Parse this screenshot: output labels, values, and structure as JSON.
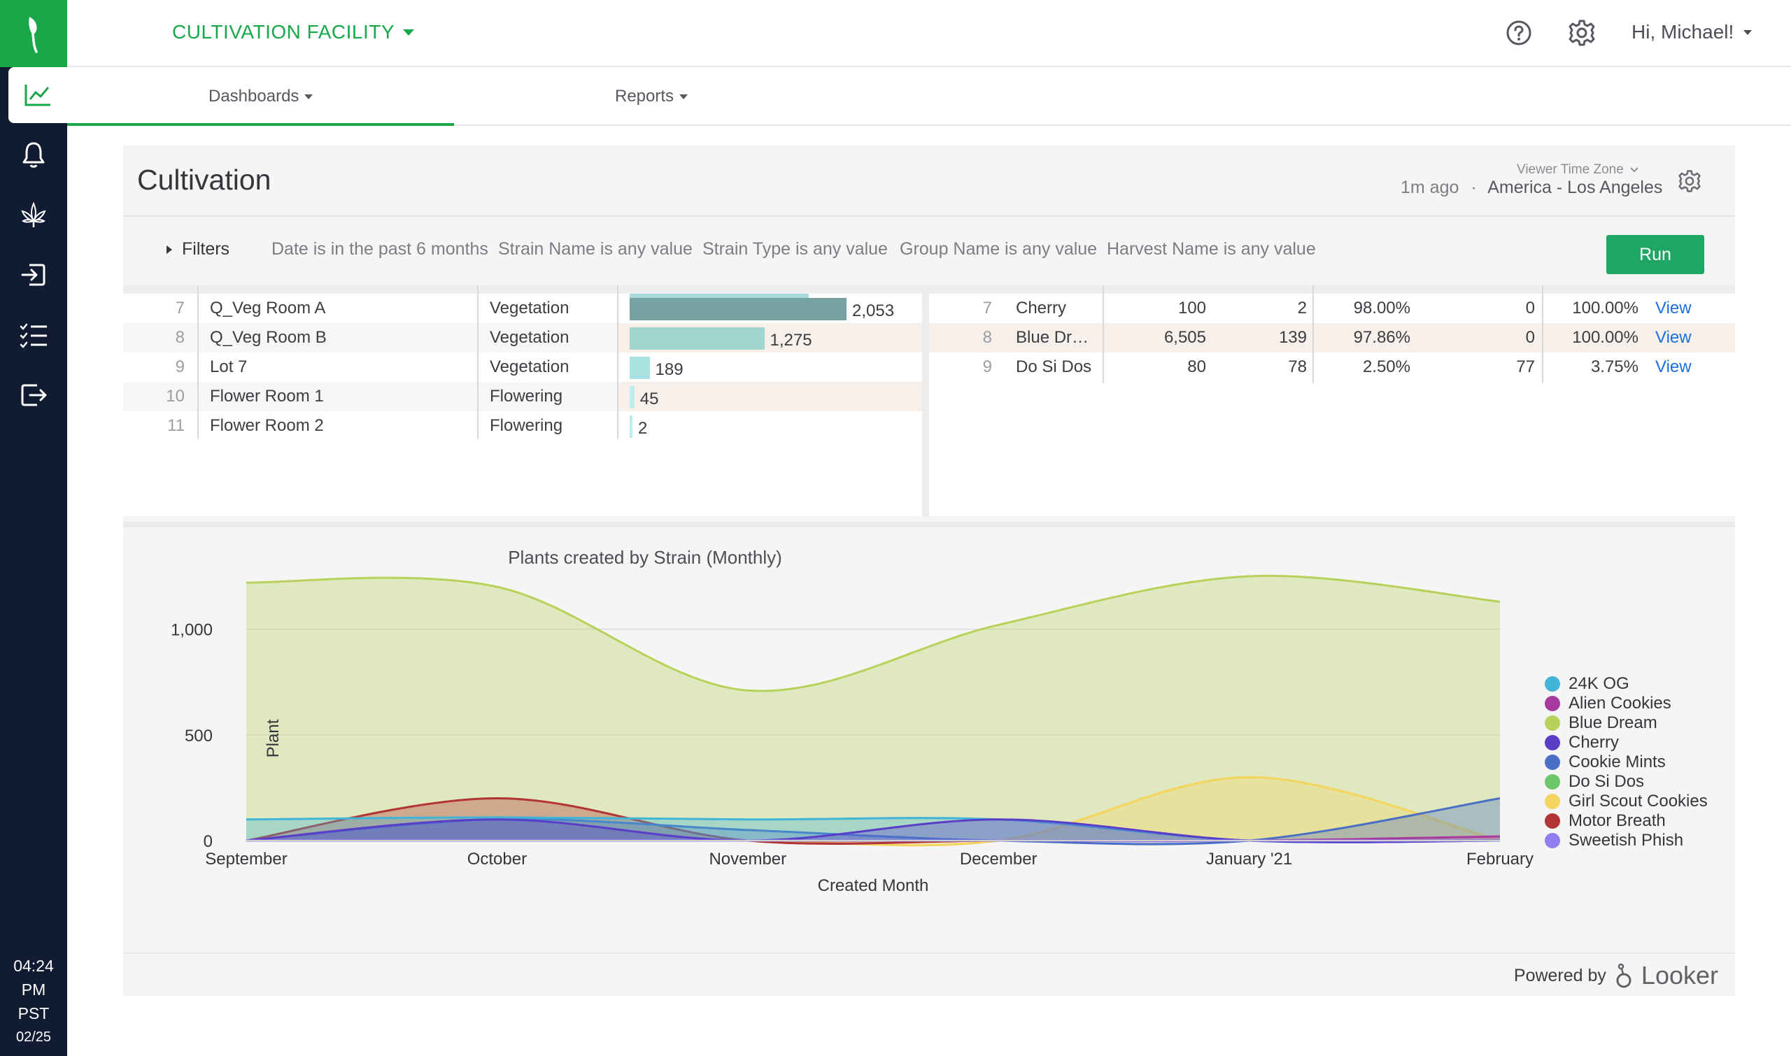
{
  "app": {
    "facility": "CULTIVATION FACILITY",
    "greeting": "Hi, Michael!"
  },
  "sidebar": {
    "clock": {
      "time": "04:24",
      "ampm": "PM",
      "tz": "PST",
      "date": "02/25"
    }
  },
  "nav": {
    "tabs": [
      {
        "label": "Dashboards"
      },
      {
        "label": "Reports"
      }
    ]
  },
  "dashboard": {
    "title": "Cultivation",
    "updated": "1m ago",
    "separator": "·",
    "tz_label": "Viewer Time Zone",
    "tz_value": "America - Los Angeles",
    "filters_label": "Filters",
    "filters": [
      "Date is in the past 6 months",
      "Strain Name is any value",
      "Strain Type is any value",
      "Group Name is any value",
      "Harvest Name is any value"
    ],
    "run_label": "Run"
  },
  "left_table": {
    "rows": [
      {
        "n": "7",
        "name": "Q_Veg Room A",
        "phase": "Vegetation",
        "value": 2053,
        "label": "2,053"
      },
      {
        "n": "8",
        "name": "Q_Veg Room B",
        "phase": "Vegetation",
        "value": 1275,
        "label": "1,275"
      },
      {
        "n": "9",
        "name": "Lot 7",
        "phase": "Vegetation",
        "value": 189,
        "label": "189"
      },
      {
        "n": "10",
        "name": "Flower Room 1",
        "phase": "Flowering",
        "value": 45,
        "label": "45"
      },
      {
        "n": "11",
        "name": "Flower Room 2",
        "phase": "Flowering",
        "value": 2,
        "label": "2"
      }
    ]
  },
  "right_table": {
    "rows": [
      {
        "n": "7",
        "name": "Cherry",
        "c1": "100",
        "c2": "2",
        "c3": "98.00%",
        "c4": "0",
        "c5": "100.00%",
        "link": "View"
      },
      {
        "n": "8",
        "name": "Blue Dr…",
        "c1": "6,505",
        "c2": "139",
        "c3": "97.86%",
        "c4": "0",
        "c5": "100.00%",
        "link": "View"
      },
      {
        "n": "9",
        "name": "Do Si Dos",
        "c1": "80",
        "c2": "78",
        "c3": "2.50%",
        "c4": "77",
        "c5": "3.75%",
        "link": "View"
      }
    ]
  },
  "chart_data": {
    "type": "area",
    "title": "Plants created by Strain (Monthly)",
    "xlabel": "Created Month",
    "ylabel": "Plant",
    "categories": [
      "September",
      "October",
      "November",
      "December",
      "January '21",
      "February"
    ],
    "yticks": [
      {
        "value": 0,
        "label": "0"
      },
      {
        "value": 500,
        "label": "500"
      },
      {
        "value": 1000,
        "label": "1,000"
      }
    ],
    "ylim": [
      0,
      1250
    ],
    "grid": true,
    "legend_position": "right",
    "series": [
      {
        "name": "24K OG",
        "color": "#41b4d8",
        "values": [
          100,
          110,
          100,
          100,
          0,
          0
        ]
      },
      {
        "name": "Alien Cookies",
        "color": "#a8399f",
        "values": [
          0,
          0,
          0,
          0,
          0,
          20
        ]
      },
      {
        "name": "Blue Dream",
        "color": "#b8d15a",
        "values": [
          1220,
          1200,
          710,
          1020,
          1250,
          1130
        ]
      },
      {
        "name": "Cherry",
        "color": "#5a3ec8",
        "values": [
          0,
          100,
          0,
          100,
          0,
          0
        ]
      },
      {
        "name": "Cookie Mints",
        "color": "#4a6fc4",
        "values": [
          0,
          100,
          50,
          0,
          0,
          200
        ]
      },
      {
        "name": "Do Si Dos",
        "color": "#6cc76a",
        "values": [
          0,
          0,
          0,
          0,
          0,
          0
        ]
      },
      {
        "name": "Girl Scout Cookies",
        "color": "#f3d45e",
        "values": [
          0,
          0,
          0,
          0,
          300,
          0
        ]
      },
      {
        "name": "Motor Breath",
        "color": "#b23434",
        "values": [
          0,
          200,
          0,
          0,
          0,
          0
        ]
      },
      {
        "name": "Sweetish Phish",
        "color": "#8f7ff0",
        "values": [
          0,
          0,
          0,
          0,
          0,
          0
        ]
      }
    ]
  },
  "footer": {
    "powered_by": "Powered by",
    "brand": "Looker"
  }
}
